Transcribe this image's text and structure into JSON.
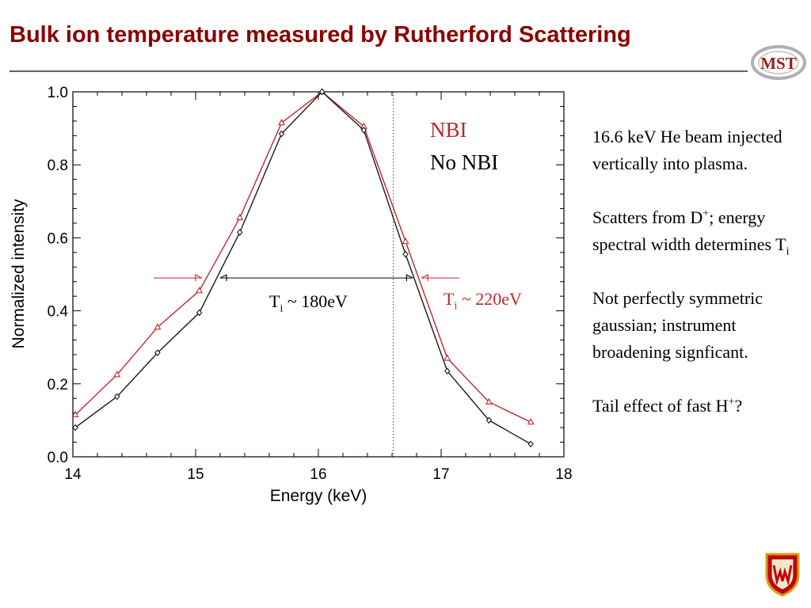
{
  "slide": {
    "title": "Bulk ion temperature measured by Rutherford Scattering",
    "logo_text": "MST",
    "colors": {
      "title": "#8b0000",
      "rule": "#5a6470",
      "nbi": "#c0282c",
      "no_nbi": "#1a1a1a"
    }
  },
  "annotations": {
    "legend_nbi": "NBI",
    "legend_no_nbi": "No NBI",
    "ti_no_nbi": {
      "prefix": "T",
      "sub": "i",
      "suffix": " ~ 180eV"
    },
    "ti_nbi": {
      "prefix": "T",
      "sub": "i",
      "suffix": " ~ 220eV"
    }
  },
  "notes": {
    "p1": "16.6 keV He beam injected vertically into plasma.",
    "p2": {
      "a": "Scatters from D",
      "sup": "+",
      "b": "; energy spectral width determines T",
      "sub": "i"
    },
    "p3": "Not perfectly symmetric gaussian; instrument broadening signficant.",
    "p4": {
      "a": "Tail effect of fast H",
      "sup": "+",
      "b": "?"
    }
  },
  "chart_data": {
    "type": "line",
    "xlabel": "Energy (keV)",
    "ylabel": "Normalized intensity",
    "xlim": [
      14,
      18
    ],
    "ylim": [
      0,
      1
    ],
    "xticks": [
      14,
      15,
      16,
      17,
      18
    ],
    "yticks": [
      0.0,
      0.2,
      0.4,
      0.6,
      0.8,
      1.0
    ],
    "xtick_labels": [
      "14",
      "15",
      "16",
      "17",
      "18"
    ],
    "ytick_labels": [
      "0.0",
      "0.2",
      "0.4",
      "0.6",
      "0.8",
      "1.0"
    ],
    "vline_x": 16.61,
    "fwhm_no_nbi": {
      "x1": 15.2,
      "x2": 16.77,
      "y": 0.49
    },
    "fwhm_nbi_arrows": {
      "y": 0.49,
      "left_x": [
        14.66,
        15.05
      ],
      "right_x": [
        17.15,
        16.84
      ]
    },
    "series": [
      {
        "name": "NBI",
        "color": "#c0282c",
        "marker": "triangle",
        "x": [
          14.02,
          14.36,
          14.69,
          15.03,
          15.36,
          15.7,
          16.03,
          16.37,
          16.71,
          17.05,
          17.39,
          17.73
        ],
        "y": [
          0.115,
          0.225,
          0.355,
          0.455,
          0.655,
          0.915,
          1.0,
          0.905,
          0.59,
          0.27,
          0.15,
          0.095
        ]
      },
      {
        "name": "No NBI",
        "color": "#1a1a1a",
        "marker": "diamond",
        "x": [
          14.02,
          14.36,
          14.69,
          15.03,
          15.36,
          15.7,
          16.03,
          16.37,
          16.71,
          17.05,
          17.39,
          17.73
        ],
        "y": [
          0.08,
          0.165,
          0.285,
          0.395,
          0.615,
          0.885,
          1.0,
          0.895,
          0.555,
          0.235,
          0.1,
          0.035
        ]
      }
    ]
  }
}
